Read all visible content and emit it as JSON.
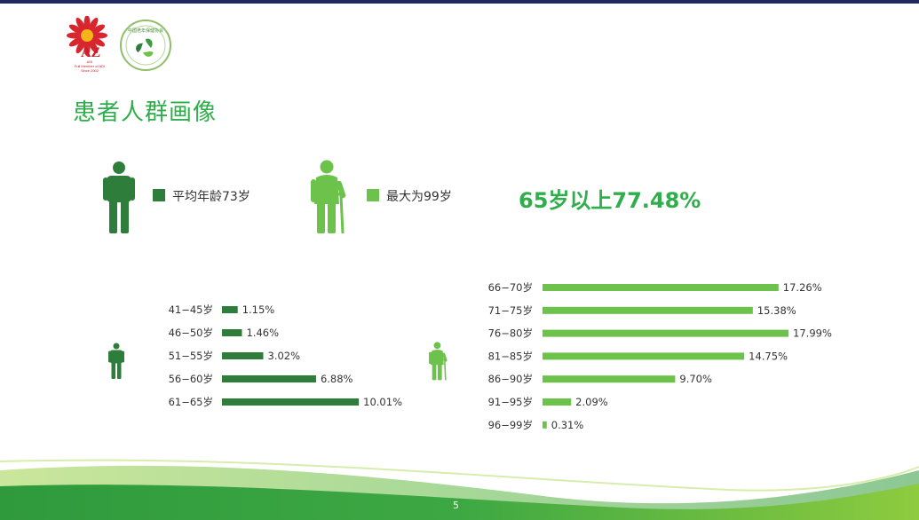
{
  "slide": {
    "title": "患者人群画像",
    "page_number": "5"
  },
  "logos": {
    "left_lines": [
      "ADI",
      "Full Member of ADI",
      "Since 2002"
    ],
    "right_text": "中国老年保健协会"
  },
  "legend": {
    "avg_label": "平均年龄73岁",
    "max_label": "最大为99岁",
    "avg_color": "#2e7d3a",
    "max_color": "#6cc24a"
  },
  "highlight": "65岁以上77.48%",
  "icons": {
    "young_person": "person-icon",
    "elderly_person": "elderly-person-with-cane-icon"
  },
  "chart_data": [
    {
      "type": "bar",
      "orientation": "horizontal",
      "color": "#2e7d3a",
      "categories": [
        "41−45岁",
        "46−50岁",
        "51−55岁",
        "56−60岁",
        "61−65岁"
      ],
      "values": [
        1.15,
        1.46,
        3.02,
        6.88,
        10.01
      ],
      "value_labels": [
        "1.15%",
        "1.46%",
        "3.02%",
        "6.88%",
        "10.01%"
      ],
      "unit": "%"
    },
    {
      "type": "bar",
      "orientation": "horizontal",
      "color": "#6cc24a",
      "categories": [
        "66−70岁",
        "71−75岁",
        "76−80岁",
        "81−85岁",
        "86−90岁",
        "91−95岁",
        "96−99岁"
      ],
      "values": [
        17.26,
        15.38,
        17.99,
        14.75,
        9.7,
        2.09,
        0.31
      ],
      "value_labels": [
        "17.26%",
        "15.38%",
        "17.99%",
        "14.75%",
        "9.70%",
        "2.09%",
        "0.31%"
      ],
      "unit": "%"
    }
  ]
}
